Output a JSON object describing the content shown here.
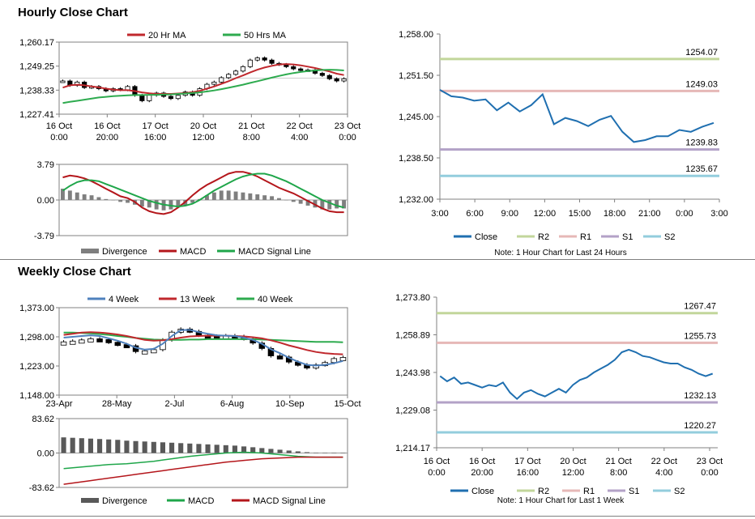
{
  "sections": {
    "hourly_title": "Hourly Close Chart",
    "weekly_title": "Weekly Close Chart"
  },
  "colors": {
    "ma_short": "#c0282d",
    "ma_long": "#2eab4f",
    "divergence": "#7f7f7f",
    "macd": "#b4161b",
    "signal": "#1fa64a",
    "close": "#1f6fb0",
    "r2": "#c2d69b",
    "r1": "#e6b8b7",
    "s1": "#b3a2c7",
    "s2": "#93cddd",
    "four_week": "#4f81bd"
  },
  "chart_data": [
    {
      "id": "hourly_price",
      "type": "candlestick",
      "legend": [
        "20 Hr MA",
        "50 Hrs MA"
      ],
      "y_ticks": [
        "1,260.17",
        "1,249.25",
        "1,238.33",
        "1,227.41"
      ],
      "ylim": [
        1227.41,
        1260.17
      ],
      "x_ticks": [
        [
          "16 Oct",
          "0:00"
        ],
        [
          "16 Oct",
          "20:00"
        ],
        [
          "17 Oct",
          "16:00"
        ],
        [
          "20 Oct",
          "12:00"
        ],
        [
          "21 Oct",
          "8:00"
        ],
        [
          "22 Oct",
          "4:00"
        ],
        [
          "23 Oct",
          "0:00"
        ]
      ],
      "close_path": [
        1242.5,
        1240.5,
        1242.0,
        1239.5,
        1240.0,
        1239.0,
        1238.0,
        1239.0,
        1238.5,
        1240.0,
        1236.0,
        1233.5,
        1236.0,
        1237.0,
        1235.5,
        1234.5,
        1236.0,
        1237.5,
        1236.0,
        1239.0,
        1241.0,
        1242.0,
        1244.0,
        1245.5,
        1247.0,
        1249.0,
        1252.0,
        1253.0,
        1252.0,
        1250.5,
        1250.0,
        1249.0,
        1248.0,
        1247.5,
        1247.5,
        1246.0,
        1245.0,
        1243.5,
        1242.5,
        1243.5
      ],
      "ma20": [
        1239.5,
        1240.5,
        1240.8,
        1240.5,
        1240.0,
        1239.6,
        1239.0,
        1238.6,
        1238.3,
        1238.3,
        1237.9,
        1237.3,
        1236.9,
        1236.6,
        1236.6,
        1236.6,
        1236.8,
        1237.0,
        1237.4,
        1238.0,
        1239.0,
        1240.0,
        1241.2,
        1242.4,
        1243.8,
        1245.0,
        1246.4,
        1247.6,
        1248.6,
        1249.4,
        1250.0,
        1250.2,
        1250.0,
        1249.6,
        1249.0,
        1248.4,
        1247.6,
        1246.8,
        1245.8,
        1245.2
      ],
      "ma50": [
        1232.5,
        1233.0,
        1233.5,
        1234.0,
        1234.5,
        1235.0,
        1235.3,
        1235.6,
        1235.8,
        1236.0,
        1236.1,
        1236.1,
        1236.2,
        1236.2,
        1236.3,
        1236.4,
        1236.6,
        1236.8,
        1237.0,
        1237.3,
        1237.7,
        1238.2,
        1238.8,
        1239.4,
        1240.1,
        1240.8,
        1241.6,
        1242.4,
        1243.2,
        1244.0,
        1244.8,
        1245.5,
        1246.1,
        1246.6,
        1247.0,
        1247.3,
        1247.5,
        1247.6,
        1247.5,
        1247.3
      ]
    },
    {
      "id": "hourly_macd",
      "type": "bar+line",
      "legend": [
        "Divergence",
        "MACD",
        "MACD Signal Line"
      ],
      "y_ticks": [
        "3.79",
        "0.00",
        "-3.79"
      ],
      "ylim": [
        -3.79,
        3.79
      ],
      "divergence": [
        1.2,
        1.0,
        0.8,
        0.6,
        0.5,
        0.3,
        0.1,
        0.0,
        -0.2,
        -0.3,
        -0.5,
        -0.7,
        -0.8,
        -1.0,
        -1.1,
        -1.0,
        -0.8,
        -0.6,
        -0.3,
        0.1,
        0.5,
        0.8,
        1.0,
        1.0,
        0.9,
        0.8,
        0.7,
        0.6,
        0.5,
        0.4,
        0.2,
        0.0,
        -0.2,
        -0.4,
        -0.6,
        -0.8,
        -1.0,
        -1.0,
        -0.9,
        -0.9
      ],
      "macd": [
        2.4,
        2.6,
        2.5,
        2.3,
        2.0,
        1.6,
        1.2,
        0.8,
        0.4,
        0.2,
        -0.2,
        -0.8,
        -1.2,
        -1.4,
        -1.5,
        -1.3,
        -0.8,
        -0.2,
        0.5,
        1.1,
        1.6,
        2.0,
        2.4,
        2.8,
        3.0,
        3.0,
        2.8,
        2.5,
        2.1,
        1.7,
        1.3,
        1.0,
        0.7,
        0.3,
        -0.1,
        -0.5,
        -0.9,
        -1.2,
        -1.3,
        -1.3
      ],
      "signal": [
        1.0,
        1.5,
        1.9,
        2.1,
        2.1,
        2.0,
        1.7,
        1.4,
        1.1,
        0.8,
        0.5,
        0.2,
        -0.1,
        -0.3,
        -0.5,
        -0.6,
        -0.7,
        -0.6,
        -0.4,
        0.0,
        0.5,
        1.0,
        1.4,
        1.8,
        2.2,
        2.5,
        2.7,
        2.8,
        2.8,
        2.6,
        2.3,
        2.0,
        1.6,
        1.2,
        0.8,
        0.4,
        0.0,
        -0.3,
        -0.6,
        -0.8
      ]
    },
    {
      "id": "hourly_levels",
      "type": "line",
      "legend": [
        "Close",
        "R2",
        "R1",
        "S1",
        "S2"
      ],
      "note": "Note: 1 Hour Chart for Last 24 Hours",
      "y_ticks": [
        "1,258.00",
        "1,251.50",
        "1,245.00",
        "1,238.50",
        "1,232.00"
      ],
      "ylim": [
        1232.0,
        1258.0
      ],
      "x_ticks": [
        "3:00",
        "6:00",
        "9:00",
        "12:00",
        "15:00",
        "18:00",
        "21:00",
        "0:00",
        "3:00"
      ],
      "levels": [
        {
          "name": "R2",
          "value": 1254.07,
          "label": "1254.07"
        },
        {
          "name": "R1",
          "value": 1249.03,
          "label": "1249.03"
        },
        {
          "name": "S1",
          "value": 1239.83,
          "label": "1239.83"
        },
        {
          "name": "S2",
          "value": 1235.67,
          "label": "1235.67"
        }
      ],
      "close": [
        1249.2,
        1248.2,
        1248.0,
        1247.5,
        1247.7,
        1246.0,
        1247.2,
        1245.8,
        1246.8,
        1248.5,
        1243.8,
        1244.8,
        1244.3,
        1243.5,
        1244.5,
        1245.1,
        1242.6,
        1241.0,
        1241.3,
        1241.9,
        1241.9,
        1242.9,
        1242.6,
        1243.4,
        1244.0
      ]
    },
    {
      "id": "weekly_price",
      "type": "candlestick",
      "legend": [
        "4 Week",
        "13 Week",
        "40 Week"
      ],
      "y_ticks": [
        "1,373.00",
        "1,298.00",
        "1,223.00",
        "1,148.00"
      ],
      "ylim": [
        1148.0,
        1373.0
      ],
      "x_ticks": [
        "23-Apr",
        "28-May",
        "2-Jul",
        "6-Aug",
        "10-Sep",
        "15-Oct"
      ],
      "close_path": [
        1285,
        1287,
        1290,
        1293,
        1291,
        1284,
        1278,
        1275,
        1260,
        1262,
        1265,
        1290,
        1310,
        1318,
        1312,
        1302,
        1300,
        1297,
        1301,
        1299,
        1293,
        1282,
        1268,
        1249,
        1246,
        1233,
        1226,
        1218,
        1226,
        1232,
        1242,
        1245
      ],
      "wk4": [
        1296,
        1298,
        1300,
        1302,
        1300,
        1294,
        1288,
        1280,
        1270,
        1265,
        1267,
        1280,
        1300,
        1315,
        1316,
        1310,
        1306,
        1302,
        1301,
        1300,
        1296,
        1290,
        1280,
        1266,
        1256,
        1244,
        1234,
        1226,
        1224,
        1226,
        1230,
        1236
      ],
      "wk13": [
        1303,
        1306,
        1309,
        1310,
        1309,
        1307,
        1304,
        1300,
        1295,
        1290,
        1288,
        1289,
        1292,
        1296,
        1299,
        1300,
        1301,
        1301,
        1301,
        1300,
        1299,
        1297,
        1294,
        1289,
        1283,
        1276,
        1270,
        1264,
        1259,
        1256,
        1254,
        1253
      ],
      "wk40": [
        1309,
        1309,
        1308,
        1307,
        1305,
        1303,
        1300,
        1298,
        1295,
        1293,
        1291,
        1290,
        1290,
        1290,
        1291,
        1291,
        1292,
        1292,
        1292,
        1292,
        1292,
        1292,
        1291,
        1290,
        1289,
        1288,
        1287,
        1286,
        1285,
        1285,
        1285,
        1284
      ]
    },
    {
      "id": "weekly_macd",
      "type": "bar+line",
      "legend": [
        "Divergence",
        "MACD",
        "MACD Signal Line"
      ],
      "y_ticks": [
        "83.62",
        "0.00",
        "-83.62"
      ],
      "ylim": [
        -83.62,
        83.62
      ],
      "divergence": [
        38,
        37,
        36,
        35,
        34,
        33,
        32,
        30,
        29,
        28,
        27,
        26,
        25,
        24,
        23,
        22,
        21,
        20,
        19,
        18,
        16,
        14,
        12,
        10,
        8,
        6,
        4,
        2,
        1,
        0,
        -1,
        -1
      ],
      "macd": [
        -38,
        -36,
        -34,
        -32,
        -30,
        -28,
        -27,
        -26,
        -24,
        -22,
        -20,
        -17,
        -14,
        -11,
        -8,
        -6,
        -4,
        -2,
        0,
        1,
        2,
        1,
        0,
        -2,
        -4,
        -6,
        -8,
        -9,
        -10,
        -10,
        -10,
        -10
      ],
      "signal": [
        -76,
        -73,
        -70,
        -67,
        -64,
        -61,
        -58,
        -55,
        -52,
        -49,
        -46,
        -43,
        -40,
        -37,
        -34,
        -31,
        -28,
        -25,
        -22,
        -20,
        -18,
        -16,
        -14,
        -13,
        -12,
        -11,
        -10,
        -10,
        -10,
        -10,
        -10,
        -10
      ]
    },
    {
      "id": "weekly_levels",
      "type": "line",
      "legend": [
        "Close",
        "R2",
        "R1",
        "S1",
        "S2"
      ],
      "note": "Note: 1 Hour Chart for Last 1 Week",
      "y_ticks": [
        "1,273.80",
        "1,258.89",
        "1,243.98",
        "1,229.08",
        "1,214.17"
      ],
      "ylim": [
        1214.17,
        1273.8
      ],
      "x_ticks": [
        [
          "16 Oct",
          "0:00"
        ],
        [
          "16 Oct",
          "20:00"
        ],
        [
          "17 Oct",
          "16:00"
        ],
        [
          "20 Oct",
          "12:00"
        ],
        [
          "21 Oct",
          "8:00"
        ],
        [
          "22 Oct",
          "4:00"
        ],
        [
          "23 Oct",
          "0:00"
        ]
      ],
      "levels": [
        {
          "name": "R2",
          "value": 1267.47,
          "label": "1267.47"
        },
        {
          "name": "R1",
          "value": 1255.73,
          "label": "1255.73"
        },
        {
          "name": "S1",
          "value": 1232.13,
          "label": "1232.13"
        },
        {
          "name": "S2",
          "value": 1220.27,
          "label": "1220.27"
        }
      ],
      "close": [
        1242.5,
        1240.5,
        1242.0,
        1239.5,
        1240.0,
        1239.0,
        1238.0,
        1239.0,
        1238.5,
        1240.0,
        1236.0,
        1233.5,
        1236.0,
        1237.0,
        1235.5,
        1234.5,
        1236.0,
        1237.5,
        1236.0,
        1239.0,
        1241.0,
        1242.0,
        1244.0,
        1245.5,
        1247.0,
        1249.0,
        1252.0,
        1253.0,
        1252.0,
        1250.5,
        1250.0,
        1249.0,
        1248.0,
        1247.5,
        1247.5,
        1246.0,
        1245.0,
        1243.5,
        1242.5,
        1243.5
      ]
    }
  ]
}
